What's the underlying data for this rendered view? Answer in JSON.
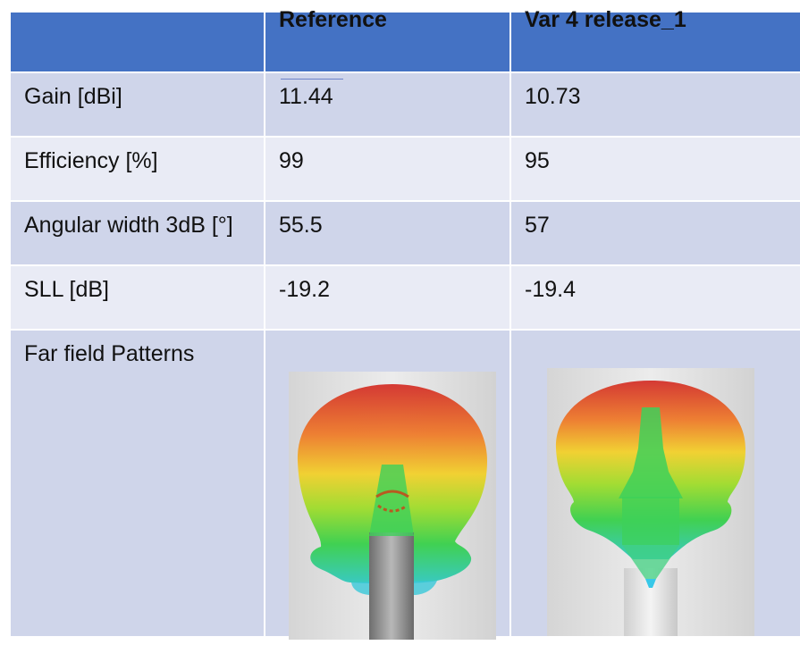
{
  "table": {
    "headers": [
      "",
      "Reference",
      "Var 4 release_1"
    ],
    "rows": [
      {
        "label": "Gain [dBi]",
        "values": [
          "11.44",
          "10.73"
        ]
      },
      {
        "label": "Efficiency [%]",
        "values": [
          "99",
          "95"
        ]
      },
      {
        "label": "Angular width 3dB [°]",
        "values": [
          "55.5",
          "57"
        ]
      },
      {
        "label": "SLL [dB]",
        "values": [
          "-19.2",
          "-19.4"
        ]
      },
      {
        "label": "Far field Patterns",
        "values": [
          "",
          ""
        ]
      }
    ]
  },
  "colors": {
    "header_bg": "#4472c4",
    "row_dark": "#cfd5ea",
    "row_light": "#e9ebf5",
    "pattern_top": "#d83a2a",
    "pattern_mid": "#f2d02a",
    "pattern_bottom": "#3fd04a"
  },
  "images": {
    "reference_pattern": "far-field-pattern-reference",
    "var4_pattern": "far-field-pattern-var4"
  }
}
